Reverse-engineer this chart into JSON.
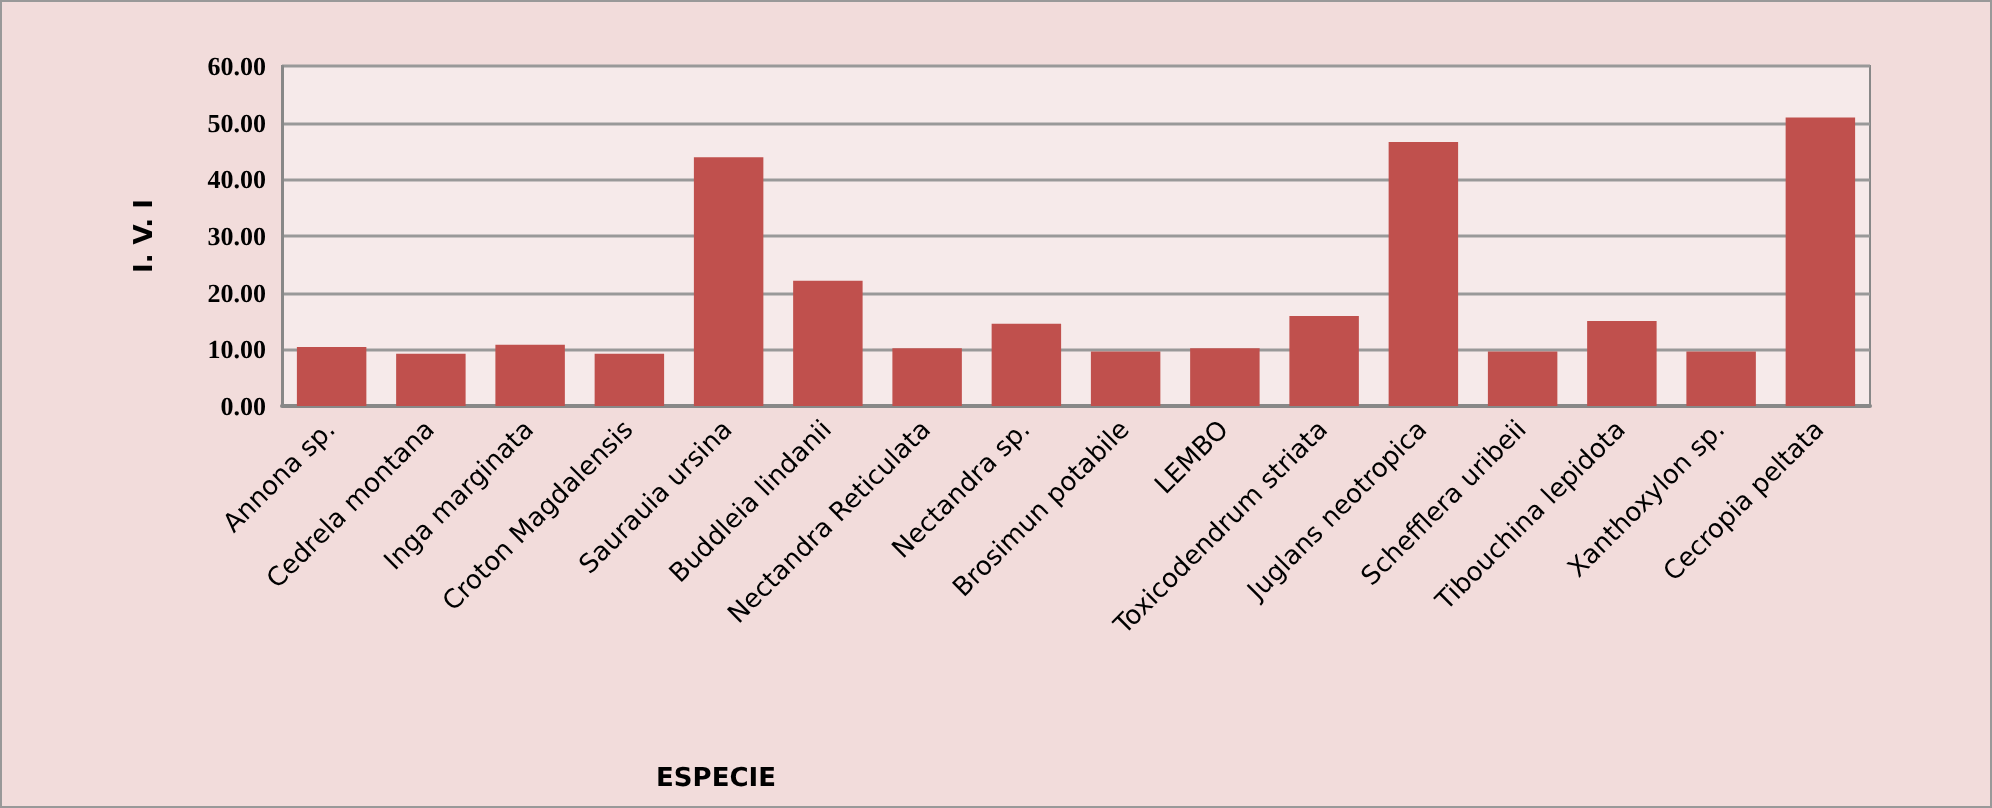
{
  "chart_data": {
    "type": "bar",
    "xlabel": "ESPECIE",
    "ylabel": "I. V. I",
    "categories": [
      "Annona sp.",
      "Cedrela montana",
      "Inga marginata",
      "Croton Magdalensis",
      "Saurauia ursina",
      "Buddleia lindanii",
      "Nectandra Reticulata",
      "Nectandra sp.",
      "Brosimun potabile",
      "LEMBO",
      "Toxicodendrum striata",
      "Juglans neotropica",
      "Schefflera uribeii",
      "Tibouchina lepidota",
      "Xanthoxylon sp.",
      "Cecropia peltata"
    ],
    "values": [
      10.4,
      9.2,
      10.8,
      9.2,
      43.9,
      22.1,
      10.2,
      14.5,
      9.6,
      10.2,
      15.9,
      46.6,
      9.6,
      15.0,
      9.6,
      50.9
    ],
    "color": "#c0504d",
    "ylim": [
      0,
      60
    ],
    "yticks": [
      {
        "value": 0,
        "label": "0.00"
      },
      {
        "value": 10,
        "label": "10.00"
      },
      {
        "value": 20,
        "label": "20.00"
      },
      {
        "value": 30,
        "label": "30.00"
      },
      {
        "value": 40,
        "label": "40.00"
      },
      {
        "value": 50,
        "label": "50.00"
      },
      {
        "value": 60,
        "label": "60.00"
      }
    ],
    "grid": "y"
  }
}
